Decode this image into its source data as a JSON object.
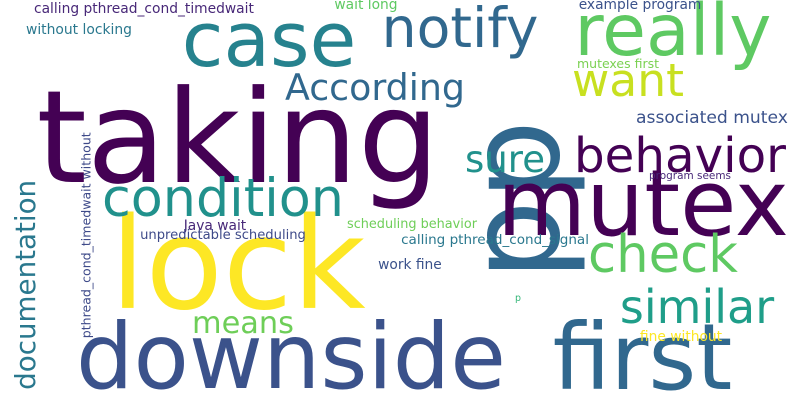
{
  "word_cloud": {
    "words": [
      {
        "text": "taking",
        "color": "#440154"
      },
      {
        "text": "lock",
        "color": "#fde725"
      },
      {
        "text": "pp",
        "color": "#31688e"
      },
      {
        "text": "downside",
        "color": "#3b528b"
      },
      {
        "text": "first",
        "color": "#31688e"
      },
      {
        "text": "mutex",
        "color": "#440154"
      },
      {
        "text": "case",
        "color": "#26828e"
      },
      {
        "text": "really",
        "color": "#5ec962"
      },
      {
        "text": "notify",
        "color": "#31688e"
      },
      {
        "text": "want",
        "color": "#c8e020"
      },
      {
        "text": "condition",
        "color": "#21918c"
      },
      {
        "text": "behavior",
        "color": "#440154"
      },
      {
        "text": "check",
        "color": "#5ec962"
      },
      {
        "text": "similar",
        "color": "#1f9e89"
      },
      {
        "text": "According",
        "color": "#31688e"
      },
      {
        "text": "documentation",
        "color": "#2a788e"
      },
      {
        "text": "sure",
        "color": "#21918c"
      },
      {
        "text": "means",
        "color": "#6ece58"
      },
      {
        "text": "associated mutex",
        "color": "#3b528b"
      },
      {
        "text": "pthread_cond_timedwait without",
        "color": "#3e4a89"
      },
      {
        "text": "calling pthread_cond_timedwait",
        "color": "#482878"
      },
      {
        "text": "without locking",
        "color": "#2a788e"
      },
      {
        "text": "wait long",
        "color": "#5ec962"
      },
      {
        "text": "example program",
        "color": "#3b528b"
      },
      {
        "text": "mutexes first",
        "color": "#7ad151"
      },
      {
        "text": "program seems",
        "color": "#482878"
      },
      {
        "text": "Java wait",
        "color": "#482878"
      },
      {
        "text": "unpredictable scheduling",
        "color": "#3e4a89"
      },
      {
        "text": "scheduling behavior",
        "color": "#6ece58"
      },
      {
        "text": "calling pthread_cond_signal",
        "color": "#2a788e"
      },
      {
        "text": "work fine",
        "color": "#3b528b"
      },
      {
        "text": "p",
        "color": "#35b779"
      },
      {
        "text": "fine without",
        "color": "#fde725"
      }
    ]
  }
}
